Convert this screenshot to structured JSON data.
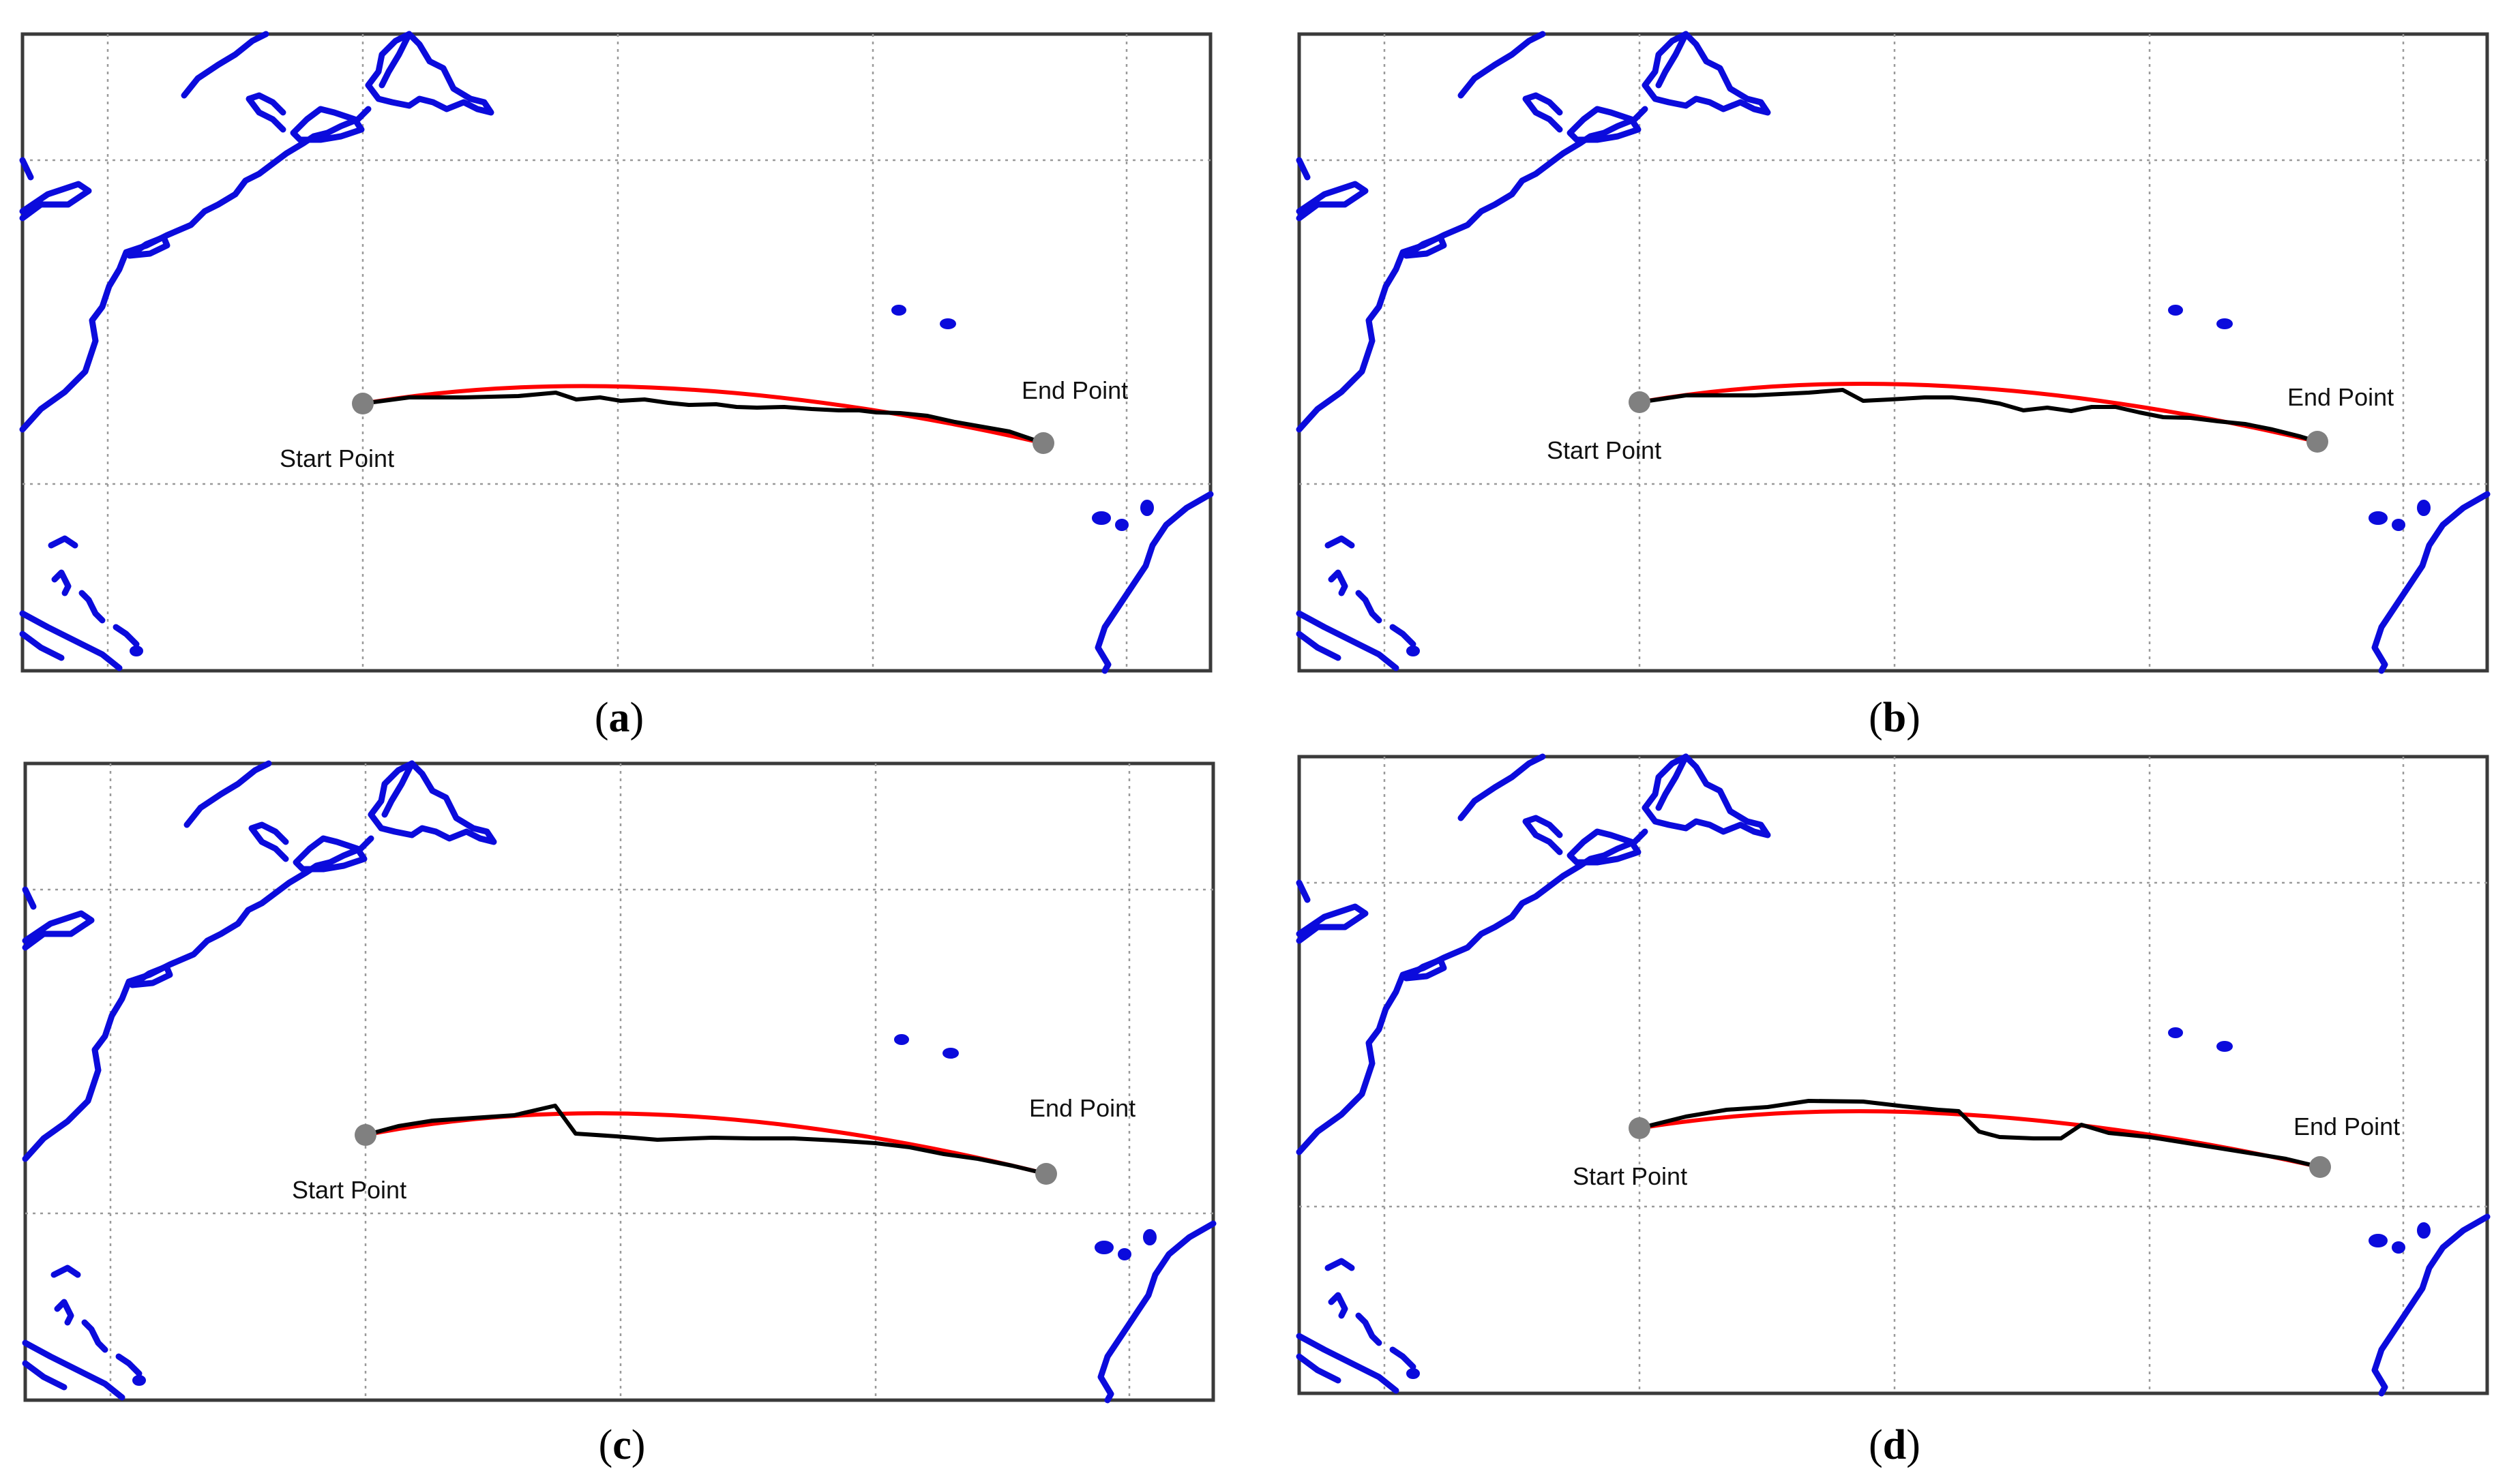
{
  "panels": [
    {
      "id": "a",
      "caption_open": "(",
      "caption_letter": "a",
      "caption_close": ")",
      "start_label": "Start Point",
      "end_label": "End Point",
      "colors": {
        "coastline": "#0b0bdc",
        "great_circle": "#ff0000",
        "route": "#000000",
        "points": "#808080"
      }
    },
    {
      "id": "b",
      "caption_open": "(",
      "caption_letter": "b",
      "caption_close": ")",
      "start_label": "Start Point",
      "end_label": "End Point",
      "colors": {
        "coastline": "#0b0bdc",
        "great_circle": "#ff0000",
        "route": "#000000",
        "points": "#808080"
      }
    },
    {
      "id": "c",
      "caption_open": "(",
      "caption_letter": "c",
      "caption_close": ")",
      "start_label": "Start Point",
      "end_label": "End Point",
      "colors": {
        "coastline": "#0b0bdc",
        "great_circle": "#ff0000",
        "route": "#000000",
        "points": "#808080"
      }
    },
    {
      "id": "d",
      "caption_open": "(",
      "caption_letter": "d",
      "caption_close": ")",
      "start_label": "Start Point",
      "end_label": "End Point",
      "colors": {
        "coastline": "#0b0bdc",
        "great_circle": "#ff0000",
        "route": "#000000",
        "points": "#808080"
      }
    }
  ]
}
